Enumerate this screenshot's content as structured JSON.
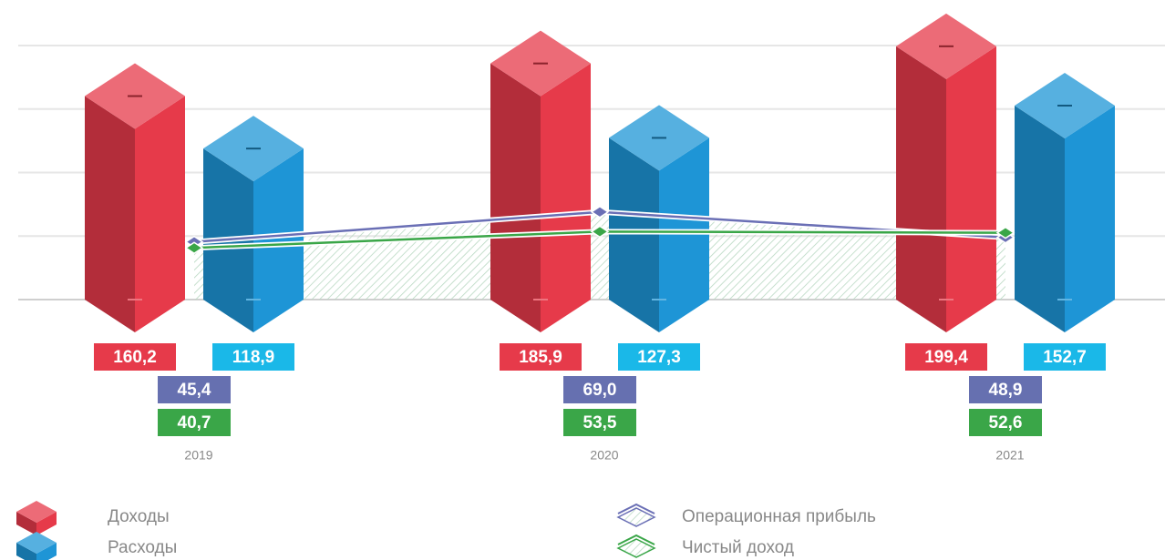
{
  "chart_data": {
    "type": "bar",
    "categories": [
      "2019",
      "2020",
      "2021"
    ],
    "ylim": [
      0,
      200
    ],
    "yticks": [
      0,
      50,
      100,
      150,
      200
    ],
    "grid": true,
    "series": [
      {
        "name": "Доходы",
        "type": "bar",
        "color": "#e63a4a",
        "values": [
          160.2,
          185.9,
          199.4
        ],
        "value_labels": [
          "160,2",
          "185,9",
          "199,4"
        ]
      },
      {
        "name": "Расходы",
        "type": "bar",
        "color": "#1e95d6",
        "values": [
          118.9,
          127.3,
          152.7
        ],
        "value_labels": [
          "118,9",
          "127,3",
          "152,7"
        ]
      },
      {
        "name": "Операционная прибыль",
        "type": "line",
        "color": "#6a6fb5",
        "values": [
          45.4,
          69.0,
          48.9
        ],
        "value_labels": [
          "45,4",
          "69,0",
          "48,9"
        ]
      },
      {
        "name": "Чистый доход",
        "type": "line",
        "color": "#3aa648",
        "values": [
          40.7,
          53.5,
          52.6
        ],
        "value_labels": [
          "40,7",
          "53,5",
          "52,6"
        ]
      }
    ]
  }
}
